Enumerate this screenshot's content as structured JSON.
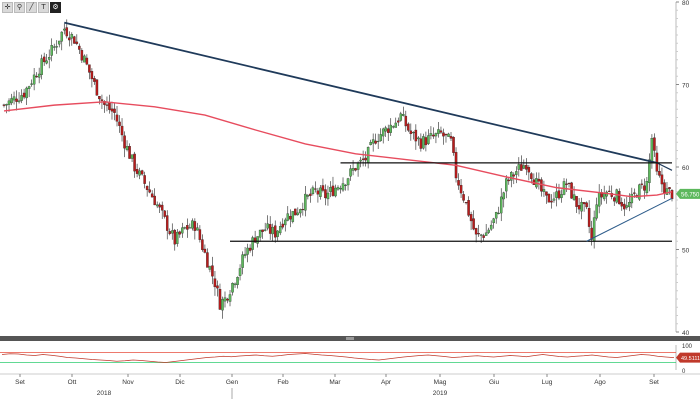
{
  "toolbar": {
    "icons": [
      "crosshair-icon",
      "zoom-icon",
      "draw-line-icon",
      "text-icon",
      "settings-icon"
    ],
    "glyphs": [
      "✛",
      "⚲",
      "╱",
      "T",
      "⚙"
    ]
  },
  "colors": {
    "up": "#5cb85c",
    "down": "#b71c1c",
    "ma": "#e74c5e",
    "trendline": "#1f3a5a",
    "support": "#111111",
    "rsi": "#c0392b",
    "rsi_band_lo": "#2ecc71",
    "rsi_band_hi": "#e74c3c",
    "price_badge": "#5cb85c",
    "rsi_badge": "#c0392b"
  },
  "chart_data": [
    {
      "type": "candlestick",
      "y_ticks": [
        "80",
        "70",
        "60",
        "50",
        "40"
      ],
      "ylim": [
        40,
        80
      ],
      "x_months": [
        "Set",
        "Ott",
        "Nov",
        "Dic",
        "Gen",
        "Feb",
        "Mar",
        "Apr",
        "Mag",
        "Giu",
        "Lug",
        "Ago",
        "Set"
      ],
      "x_years": [
        "2018",
        "2019"
      ],
      "last_price_label": "56.750",
      "price_path": [
        [
          0,
          67.5
        ],
        [
          8,
          69
        ],
        [
          14,
          72
        ],
        [
          20,
          74.5
        ],
        [
          24,
          76.8
        ],
        [
          28,
          75.5
        ],
        [
          32,
          73
        ],
        [
          36,
          70
        ],
        [
          40,
          67.5
        ],
        [
          44,
          66.5
        ],
        [
          48,
          63
        ],
        [
          52,
          60
        ],
        [
          56,
          58
        ],
        [
          60,
          56
        ],
        [
          64,
          53.5
        ],
        [
          68,
          51
        ],
        [
          72,
          52.5
        ],
        [
          76,
          53
        ],
        [
          80,
          49.5
        ],
        [
          84,
          46
        ],
        [
          86,
          43.5
        ],
        [
          88,
          44
        ],
        [
          92,
          46.5
        ],
        [
          96,
          49.5
        ],
        [
          100,
          51.5
        ],
        [
          104,
          52.5
        ],
        [
          108,
          52
        ],
        [
          112,
          54
        ],
        [
          116,
          54.5
        ],
        [
          120,
          56
        ],
        [
          124,
          57
        ],
        [
          128,
          56.5
        ],
        [
          132,
          57.5
        ],
        [
          136,
          58.5
        ],
        [
          140,
          60
        ],
        [
          144,
          61
        ],
        [
          148,
          63.5
        ],
        [
          152,
          64.5
        ],
        [
          156,
          65.5
        ],
        [
          158,
          66.2
        ],
        [
          162,
          64
        ],
        [
          166,
          63
        ],
        [
          170,
          63.5
        ],
        [
          174,
          64
        ],
        [
          178,
          63
        ],
        [
          180,
          59
        ],
        [
          184,
          55.5
        ],
        [
          188,
          51.5
        ],
        [
          192,
          52
        ],
        [
          196,
          54
        ],
        [
          200,
          58
        ],
        [
          204,
          59.5
        ],
        [
          208,
          60.5
        ],
        [
          212,
          58
        ],
        [
          216,
          56
        ],
        [
          220,
          56.5
        ],
        [
          224,
          58
        ],
        [
          228,
          55.5
        ],
        [
          232,
          54.5
        ],
        [
          234,
          51
        ],
        [
          236,
          56
        ],
        [
          240,
          57
        ],
        [
          244,
          56.5
        ],
        [
          248,
          55
        ],
        [
          252,
          57
        ],
        [
          256,
          58
        ],
        [
          258,
          63.5
        ],
        [
          260,
          59
        ],
        [
          264,
          57
        ],
        [
          266,
          56.75
        ]
      ],
      "ma_path": [
        [
          0,
          66.8
        ],
        [
          20,
          67.5
        ],
        [
          40,
          67.9
        ],
        [
          60,
          67.3
        ],
        [
          80,
          66.3
        ],
        [
          100,
          64.5
        ],
        [
          120,
          62.8
        ],
        [
          140,
          61.6
        ],
        [
          160,
          60.9
        ],
        [
          180,
          60.2
        ],
        [
          200,
          58.8
        ],
        [
          220,
          57.5
        ],
        [
          240,
          56.8
        ],
        [
          250,
          56.4
        ],
        [
          260,
          56.6
        ],
        [
          266,
          57
        ]
      ],
      "trendline": [
        [
          24,
          77.5
        ],
        [
          260,
          60.5
        ]
      ],
      "trend_extension": [
        [
          260,
          60.5
        ],
        [
          266,
          59.6
        ]
      ],
      "support_lines": [
        {
          "y": 60.5,
          "x_start": 134,
          "x_end": 266
        },
        {
          "y": 51,
          "x_start": 90,
          "x_end": 266
        }
      ],
      "rising_line": [
        [
          232,
          51
        ],
        [
          266,
          56.2
        ]
      ]
    },
    {
      "type": "line",
      "y_ticks": [
        "100",
        "0"
      ],
      "ylim": [
        0,
        100
      ],
      "bands": [
        30,
        70
      ],
      "last_value_label": "49.5111",
      "rsi_values": [
        62,
        65,
        64,
        60,
        58,
        62,
        59,
        55,
        50,
        48,
        45,
        42,
        40,
        38,
        35,
        37,
        40,
        38,
        35,
        32,
        30,
        34,
        38,
        42,
        46,
        50,
        52,
        55,
        53,
        56,
        58,
        60,
        57,
        55,
        58,
        62,
        64,
        66,
        63,
        60,
        58,
        55,
        52,
        48,
        45,
        42,
        40,
        44,
        48,
        52,
        55,
        58,
        60,
        57,
        54,
        50,
        52,
        55,
        57,
        54,
        52,
        55,
        58,
        56,
        53,
        58,
        62,
        58,
        54,
        52,
        55,
        57,
        60,
        56,
        52,
        50,
        54,
        58,
        62,
        60,
        55,
        52,
        49.5
      ]
    }
  ]
}
